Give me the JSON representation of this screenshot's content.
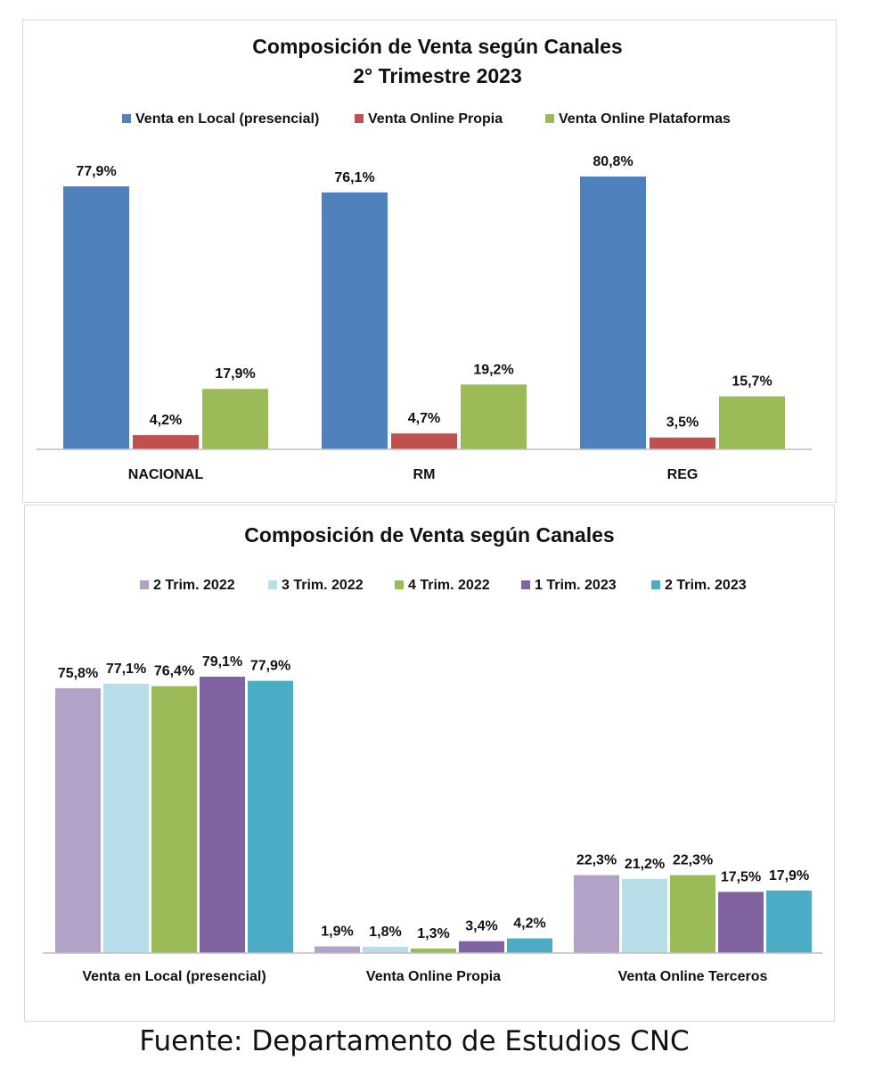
{
  "chart_data": [
    {
      "type": "bar",
      "title": "Composición de Venta según Canales",
      "subtitle": "2° Trimestre 2023",
      "categories": [
        "NACIONAL",
        "RM",
        "REG"
      ],
      "series": [
        {
          "name": "Venta en Local (presencial)",
          "color": "#4f81bd",
          "values": [
            77.9,
            76.1,
            80.8
          ],
          "labels": [
            "77,9%",
            "76,1%",
            "80,8%"
          ]
        },
        {
          "name": "Venta  Online Propia",
          "color": "#c0504d",
          "values": [
            4.2,
            4.7,
            3.5
          ],
          "labels": [
            "4,2%",
            "4,7%",
            "3,5%"
          ]
        },
        {
          "name": "Venta  Online Plataformas",
          "color": "#9bbb59",
          "values": [
            17.9,
            19.2,
            15.7
          ],
          "labels": [
            "17,9%",
            "19,2%",
            "15,7%"
          ]
        }
      ],
      "ylim": [
        0,
        80.8
      ],
      "grid": false,
      "legend_position": "top"
    },
    {
      "type": "bar",
      "title": "Composición de Venta según Canales",
      "categories": [
        "Venta en Local (presencial)",
        "Venta  Online Propia",
        "Venta  Online Terceros"
      ],
      "series": [
        {
          "name": "2 Trim. 2022",
          "color": "#b3a2c7",
          "values": [
            75.8,
            1.9,
            22.3
          ],
          "labels": [
            "75,8%",
            "1,9%",
            "22,3%"
          ]
        },
        {
          "name": "3 Trim. 2022",
          "color": "#b7dee8",
          "values": [
            77.1,
            1.8,
            21.2
          ],
          "labels": [
            "77,1%",
            "1,8%",
            "21,2%"
          ]
        },
        {
          "name": "4 Trim. 2022",
          "color": "#9bbb59",
          "values": [
            76.4,
            1.3,
            22.3
          ],
          "labels": [
            "76,4%",
            "1,3%",
            "22,3%"
          ]
        },
        {
          "name": "1 Trim. 2023",
          "color": "#8064a2",
          "values": [
            79.1,
            3.4,
            17.5
          ],
          "labels": [
            "79,1%",
            "3,4%",
            "17,5%"
          ]
        },
        {
          "name": "2 Trim. 2023",
          "color": "#4bacc6",
          "values": [
            77.9,
            4.2,
            17.9
          ],
          "labels": [
            "77,9%",
            "4,2%",
            "17,9%"
          ]
        }
      ],
      "ylim": [
        0,
        79.1
      ],
      "grid": false,
      "legend_position": "top"
    }
  ],
  "footer": {
    "source_text": "Fuente: Departamento de Estudios CNC"
  }
}
